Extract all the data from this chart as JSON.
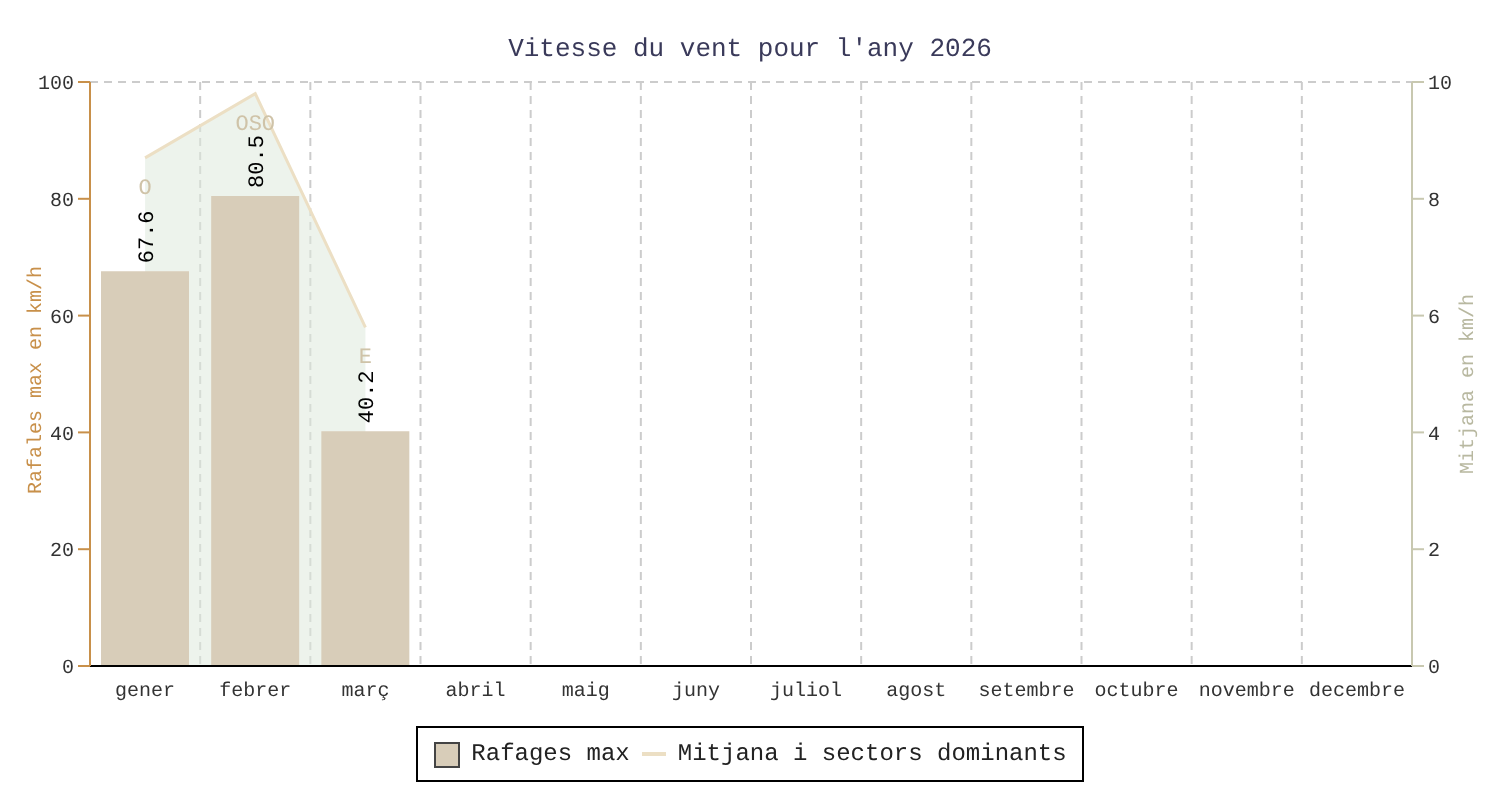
{
  "chart_data": {
    "type": "bar",
    "title": "Vitesse du vent pour l'any 2026",
    "ylabel": "Rafales max en km/h",
    "y2label": "Mitjana en km/h",
    "categories": [
      "gener",
      "febrer",
      "març",
      "abril",
      "maig",
      "juny",
      "juliol",
      "agost",
      "setembre",
      "octubre",
      "novembre",
      "decembre"
    ],
    "series": [
      {
        "name": "Rafages max",
        "color": "#d8cdb9",
        "values": [
          67.6,
          80.5,
          40.2,
          null,
          null,
          null,
          null,
          null,
          null,
          null,
          null,
          null
        ],
        "value_labels": [
          "67.6",
          "80.5",
          "40.2",
          null,
          null,
          null,
          null,
          null,
          null,
          null,
          null,
          null
        ]
      },
      {
        "name": "Mitjana i sectors dominants",
        "type": "area",
        "axis": "y2",
        "color": "#ecdfc4",
        "values": [
          8.7,
          9.8,
          5.8,
          null,
          null,
          null,
          null,
          null,
          null,
          null,
          null,
          null
        ],
        "value_labels": [
          "O",
          "OSO",
          "E",
          null,
          null,
          null,
          null,
          null,
          null,
          null,
          null,
          null
        ]
      }
    ],
    "ylim": [
      0,
      100
    ],
    "yticks": [
      0,
      20,
      40,
      60,
      80,
      100
    ],
    "y2lim": [
      0,
      10
    ],
    "y2ticks": [
      0,
      2,
      4,
      6,
      8,
      10
    ],
    "grid": true,
    "legend": "bottom"
  }
}
